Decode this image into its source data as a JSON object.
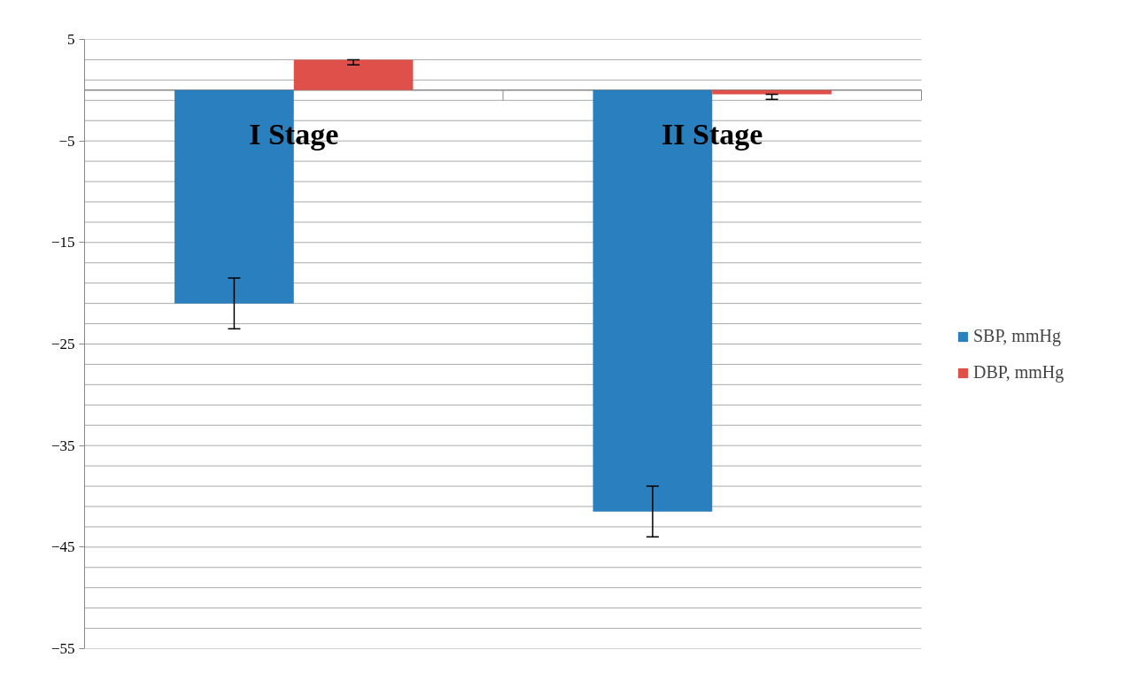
{
  "chart_data": {
    "type": "bar",
    "categories": [
      "I Stage",
      "II Stage"
    ],
    "series": [
      {
        "name": "SBP, mmHg",
        "color": "#2a7fbf",
        "values": [
          -21.0,
          -41.5
        ],
        "errors": [
          2.5,
          2.5
        ]
      },
      {
        "name": "DBP, mmHg",
        "color": "#e0504a",
        "values": [
          3.0,
          -0.4
        ],
        "errors": [
          [
            2.5,
            3.0
          ],
          [
            -0.9,
            -0.4
          ]
        ]
      }
    ],
    "ylim": [
      -55,
      5
    ],
    "yticks": [
      5,
      -5,
      -15,
      -25,
      -35,
      -45,
      -55
    ],
    "grid": "y",
    "legend": "right"
  }
}
